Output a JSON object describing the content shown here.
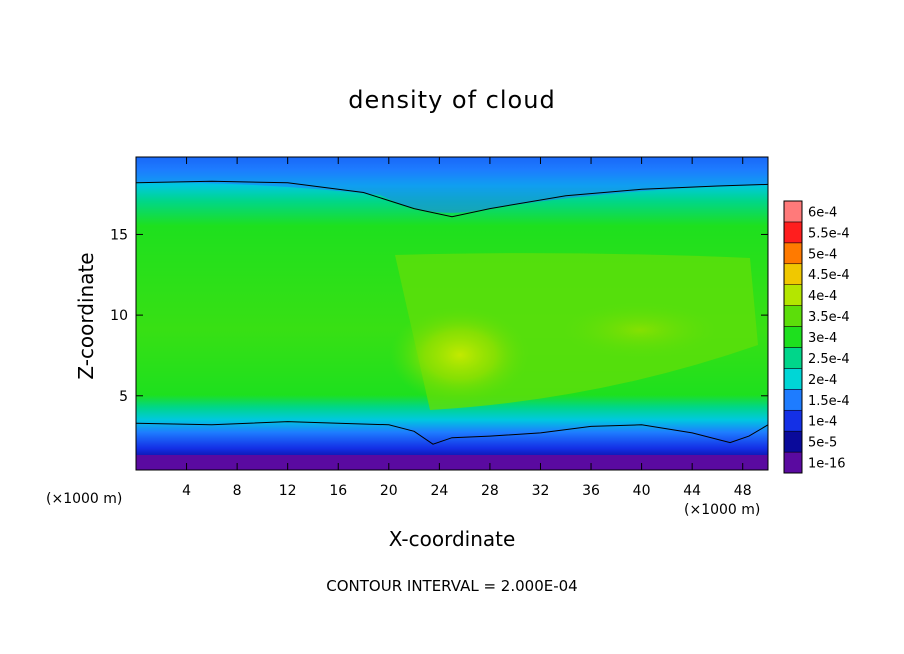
{
  "chart_data": {
    "type": "heatmap",
    "title": "density of cloud",
    "xlabel": "X-coordinate",
    "ylabel": "Z-coordinate",
    "x_unit_label": "(×1000 m)",
    "z_unit_label": "(×1000 m)",
    "footnote": "CONTOUR INTERVAL = 2.000E-04",
    "xlim": [
      0,
      50
    ],
    "ylim": [
      0.4,
      19.8
    ],
    "x_ticks": [
      {
        "value": 4,
        "label": "4"
      },
      {
        "value": 8,
        "label": "8"
      },
      {
        "value": 12,
        "label": "12"
      },
      {
        "value": 16,
        "label": "16"
      },
      {
        "value": 20,
        "label": "20"
      },
      {
        "value": 24,
        "label": "24"
      },
      {
        "value": 28,
        "label": "28"
      },
      {
        "value": 32,
        "label": "32"
      },
      {
        "value": 36,
        "label": "36"
      },
      {
        "value": 40,
        "label": "40"
      },
      {
        "value": 44,
        "label": "44"
      },
      {
        "value": 48,
        "label": "48"
      }
    ],
    "y_ticks": [
      {
        "value": 5,
        "label": "5"
      },
      {
        "value": 10,
        "label": "10"
      },
      {
        "value": 15,
        "label": "15"
      }
    ],
    "colorbar": {
      "levels": [
        {
          "label": "1e-16",
          "color": "#5a0aa0"
        },
        {
          "label": "5e-5",
          "color": "#0a0a9a"
        },
        {
          "label": "1e-4",
          "color": "#1430e6"
        },
        {
          "label": "1.5e-4",
          "color": "#1e7cff"
        },
        {
          "label": "2e-4",
          "color": "#00d6d6"
        },
        {
          "label": "2.5e-4",
          "color": "#00d68a"
        },
        {
          "label": "3e-4",
          "color": "#1ee01e"
        },
        {
          "label": "3.5e-4",
          "color": "#5cde0a"
        },
        {
          "label": "4e-4",
          "color": "#b4e600"
        },
        {
          "label": "4.5e-4",
          "color": "#f0c800"
        },
        {
          "label": "5e-4",
          "color": "#ff7a00"
        },
        {
          "label": "5.5e-4",
          "color": "#ff1e1e"
        },
        {
          "label": "6e-4",
          "color": "#ff7a7a"
        }
      ]
    },
    "contours": [
      {
        "level": "2e-4",
        "points": [
          [
            0,
            18.2
          ],
          [
            6,
            18.3
          ],
          [
            12,
            18.2
          ],
          [
            18,
            17.6
          ],
          [
            22,
            16.6
          ],
          [
            25,
            16.1
          ],
          [
            28,
            16.6
          ],
          [
            34,
            17.4
          ],
          [
            40,
            17.8
          ],
          [
            46,
            18
          ],
          [
            50,
            18.1
          ]
        ]
      },
      {
        "level": "2e-4",
        "points": [
          [
            0,
            3.3
          ],
          [
            6,
            3.2
          ],
          [
            12,
            3.4
          ],
          [
            16,
            3.3
          ],
          [
            20,
            3.2
          ],
          [
            22,
            2.8
          ],
          [
            23.5,
            2
          ],
          [
            25,
            2.4
          ],
          [
            28,
            2.5
          ],
          [
            32,
            2.7
          ],
          [
            36,
            3.1
          ],
          [
            40,
            3.2
          ],
          [
            44,
            2.7
          ],
          [
            47,
            2.1
          ],
          [
            48.5,
            2.5
          ],
          [
            50,
            3.2
          ]
        ]
      }
    ]
  }
}
